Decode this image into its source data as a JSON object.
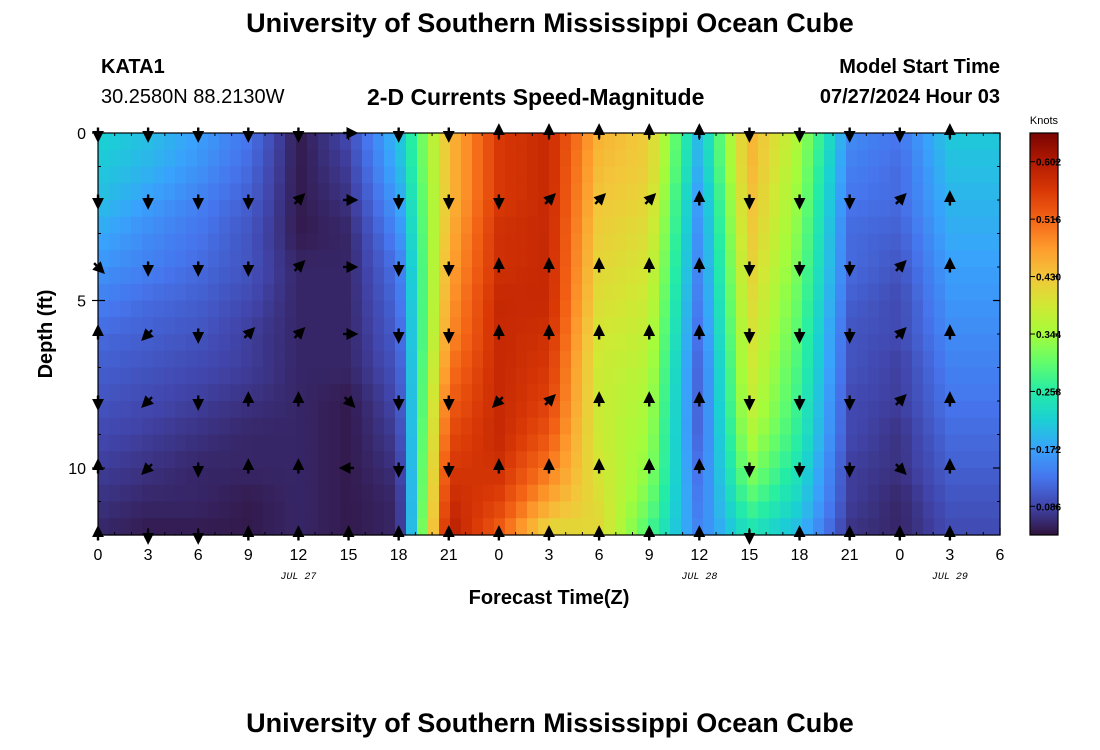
{
  "header": {
    "title": "University of Southern Mississippi Ocean Cube",
    "station_id": "KATA1",
    "station_coords": "30.2580N  88.2130W",
    "subtitle": "2-D Currents Speed-Magnitude",
    "model_start_label": "Model Start Time",
    "model_start_value": "07/27/2024 Hour 03"
  },
  "footer": {
    "title": "University of Southern Mississippi Ocean Cube"
  },
  "colors": {
    "colormap": [
      "#30123b",
      "#4145ab",
      "#4675ed",
      "#39a2fc",
      "#1bcfd4",
      "#24eca6",
      "#61fc6c",
      "#a4fc3b",
      "#d1e834",
      "#f3c63a",
      "#fe9b2d",
      "#f36315",
      "#d93806",
      "#b11901",
      "#7a0402"
    ],
    "arrow": "#000000",
    "axis": "#000000"
  },
  "chart_data": {
    "type": "heatmap",
    "title": "2-D Currents Speed-Magnitude",
    "xlabel": "Forecast Time(Z)",
    "ylabel": "Depth (ft)",
    "x_hours": [
      0,
      3,
      6,
      9,
      12,
      15,
      18,
      21,
      24,
      27,
      30,
      33,
      36,
      39,
      42,
      45,
      48,
      51
    ],
    "x_tick_labels": [
      "0",
      "3",
      "6",
      "9",
      "12",
      "15",
      "18",
      "21",
      "0",
      "3",
      "6",
      "9",
      "12",
      "15",
      "18",
      "21",
      "0",
      "3",
      "6"
    ],
    "x_range_hours": [
      0,
      54
    ],
    "date_labels": [
      {
        "label": "JUL 27",
        "hour": 12
      },
      {
        "label": "JUL 28",
        "hour": 36
      },
      {
        "label": "JUL 29",
        "hour": 51
      }
    ],
    "y_tick_labels": [
      "0",
      "5",
      "10"
    ],
    "ylim": [
      0,
      12
    ],
    "y_inverted": true,
    "depths_ft": [
      0,
      1,
      2,
      3,
      4,
      5,
      6,
      7,
      8,
      9,
      10,
      11,
      12
    ],
    "colorbar": {
      "label": "Knots",
      "vmin": 0.043,
      "vmax": 0.645,
      "ticks": [
        0.086,
        0.172,
        0.258,
        0.344,
        0.43,
        0.516,
        0.602
      ]
    },
    "speed_knots": [
      [
        0.22,
        0.2,
        0.17,
        0.13,
        0.05,
        0.09,
        0.2,
        0.44,
        0.56,
        0.58,
        0.45,
        0.42,
        0.19,
        0.45,
        0.35,
        0.15,
        0.13,
        0.21
      ],
      [
        0.21,
        0.19,
        0.16,
        0.12,
        0.05,
        0.08,
        0.19,
        0.44,
        0.56,
        0.58,
        0.44,
        0.42,
        0.18,
        0.45,
        0.34,
        0.14,
        0.12,
        0.2
      ],
      [
        0.2,
        0.17,
        0.14,
        0.11,
        0.05,
        0.07,
        0.17,
        0.44,
        0.56,
        0.58,
        0.43,
        0.41,
        0.16,
        0.44,
        0.33,
        0.13,
        0.12,
        0.19
      ],
      [
        0.18,
        0.15,
        0.13,
        0.1,
        0.05,
        0.06,
        0.15,
        0.45,
        0.57,
        0.58,
        0.42,
        0.4,
        0.15,
        0.43,
        0.32,
        0.12,
        0.11,
        0.18
      ],
      [
        0.16,
        0.14,
        0.12,
        0.1,
        0.06,
        0.06,
        0.13,
        0.46,
        0.57,
        0.58,
        0.41,
        0.39,
        0.14,
        0.42,
        0.31,
        0.12,
        0.1,
        0.17
      ],
      [
        0.14,
        0.12,
        0.11,
        0.09,
        0.06,
        0.06,
        0.12,
        0.47,
        0.58,
        0.58,
        0.4,
        0.38,
        0.13,
        0.41,
        0.3,
        0.11,
        0.09,
        0.16
      ],
      [
        0.12,
        0.11,
        0.1,
        0.08,
        0.06,
        0.06,
        0.11,
        0.48,
        0.58,
        0.57,
        0.39,
        0.37,
        0.12,
        0.4,
        0.29,
        0.1,
        0.09,
        0.15
      ],
      [
        0.11,
        0.1,
        0.09,
        0.08,
        0.06,
        0.06,
        0.1,
        0.5,
        0.58,
        0.56,
        0.38,
        0.36,
        0.11,
        0.39,
        0.28,
        0.1,
        0.08,
        0.14
      ],
      [
        0.1,
        0.09,
        0.08,
        0.07,
        0.06,
        0.05,
        0.09,
        0.52,
        0.58,
        0.55,
        0.38,
        0.35,
        0.11,
        0.38,
        0.27,
        0.09,
        0.08,
        0.13
      ],
      [
        0.09,
        0.08,
        0.07,
        0.06,
        0.06,
        0.05,
        0.08,
        0.54,
        0.58,
        0.53,
        0.38,
        0.34,
        0.11,
        0.36,
        0.26,
        0.09,
        0.07,
        0.12
      ],
      [
        0.08,
        0.07,
        0.06,
        0.06,
        0.06,
        0.05,
        0.07,
        0.56,
        0.57,
        0.5,
        0.39,
        0.33,
        0.12,
        0.33,
        0.24,
        0.08,
        0.07,
        0.11
      ],
      [
        0.07,
        0.06,
        0.06,
        0.05,
        0.06,
        0.05,
        0.06,
        0.58,
        0.55,
        0.46,
        0.4,
        0.31,
        0.13,
        0.29,
        0.22,
        0.08,
        0.06,
        0.1
      ],
      [
        0.06,
        0.05,
        0.05,
        0.05,
        0.06,
        0.05,
        0.06,
        0.6,
        0.52,
        0.4,
        0.41,
        0.28,
        0.14,
        0.24,
        0.19,
        0.07,
        0.06,
        0.09
      ]
    ],
    "arrows": {
      "depths_ft": [
        0,
        2,
        4,
        6,
        8,
        10,
        12
      ],
      "hours": [
        0,
        3,
        6,
        9,
        12,
        15,
        18,
        21,
        24,
        27,
        30,
        33,
        36,
        39,
        42,
        45,
        48,
        51
      ],
      "direction_deg": [
        [
          270,
          270,
          270,
          270,
          270,
          0,
          270,
          270,
          90,
          90,
          90,
          90,
          90,
          270,
          270,
          270,
          270,
          90
        ],
        [
          270,
          270,
          270,
          270,
          45,
          0,
          270,
          270,
          270,
          45,
          45,
          45,
          90,
          270,
          270,
          270,
          45,
          90
        ],
        [
          315,
          270,
          270,
          270,
          45,
          0,
          270,
          270,
          90,
          90,
          90,
          90,
          90,
          270,
          270,
          270,
          45,
          90
        ],
        [
          90,
          225,
          270,
          45,
          45,
          0,
          270,
          270,
          90,
          90,
          90,
          90,
          90,
          270,
          270,
          270,
          45,
          90
        ],
        [
          270,
          225,
          270,
          90,
          90,
          315,
          270,
          270,
          225,
          45,
          90,
          90,
          90,
          270,
          270,
          270,
          45,
          90
        ],
        [
          90,
          225,
          270,
          90,
          90,
          180,
          270,
          270,
          90,
          90,
          90,
          90,
          90,
          270,
          270,
          270,
          315,
          90
        ],
        [
          90,
          270,
          270,
          90,
          90,
          90,
          90,
          90,
          90,
          90,
          90,
          90,
          90,
          270,
          90,
          90,
          90,
          90
        ]
      ]
    }
  }
}
